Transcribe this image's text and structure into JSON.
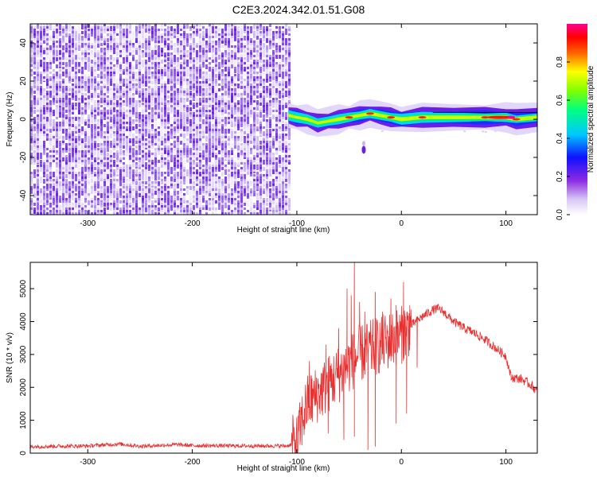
{
  "title": "C2E3.2024.342.01.51.G08",
  "colors": {
    "snr_line": "#e83030",
    "axis": "#000000"
  },
  "chart_data": [
    {
      "type": "heatmap",
      "xlabel": "Height of straight line (km)",
      "ylabel": "Frequency (Hz)",
      "xlim": [
        -355,
        130
      ],
      "ylim": [
        -50,
        50
      ],
      "x_ticks": [
        -300,
        -200,
        -100,
        0,
        100
      ],
      "y_ticks": [
        -40,
        -20,
        0,
        20,
        40
      ],
      "x_tick_labels": [
        "-300",
        "-200",
        "-100",
        "0",
        "100"
      ],
      "y_tick_labels": [
        "-40",
        "-20",
        "0",
        "20",
        "40"
      ],
      "colorbar": {
        "label": "Normalized spectral amplitude",
        "range": [
          0.0,
          1.0
        ],
        "ticks": [
          0.0,
          0.2,
          0.4,
          0.6,
          0.8
        ],
        "tick_labels": [
          "0.0",
          "0.2",
          "0.4",
          "0.6",
          "0.8"
        ],
        "colormap": "rainbow (white-purple-blue-cyan-green-yellow-red-magenta)"
      },
      "features": {
        "noise_region_x": [
          -355,
          -108
        ],
        "signal_onset_x": -108,
        "signal_track": [
          [
            -108,
            2
          ],
          [
            -100,
            1
          ],
          [
            -90,
            0
          ],
          [
            -80,
            -2
          ],
          [
            -70,
            -1
          ],
          [
            -60,
            0
          ],
          [
            -50,
            1
          ],
          [
            -40,
            2
          ],
          [
            -30,
            3
          ],
          [
            -20,
            2
          ],
          [
            -10,
            1
          ],
          [
            0,
            0
          ],
          [
            20,
            1
          ],
          [
            50,
            1
          ],
          [
            80,
            1
          ],
          [
            100,
            1
          ],
          [
            110,
            0
          ],
          [
            130,
            1
          ]
        ],
        "secondary_blob": [
          [
            -36,
            -16
          ]
        ]
      }
    },
    {
      "type": "line",
      "xlabel": "Height of straight line (km)",
      "ylabel": "SNR (10 * v/v)",
      "xlim": [
        -355,
        130
      ],
      "ylim": [
        0,
        5800
      ],
      "x_ticks": [
        -300,
        -200,
        -100,
        0,
        100
      ],
      "y_ticks": [
        0,
        1000,
        2000,
        3000,
        4000,
        5000
      ],
      "x_tick_labels": [
        "-300",
        "-200",
        "-100",
        "0",
        "100"
      ],
      "y_tick_labels": [
        "0",
        "1000",
        "2000",
        "3000",
        "4000",
        "5000"
      ],
      "series": [
        {
          "points": [
            [
              -355,
              200
            ],
            [
              -330,
              210
            ],
            [
              -300,
              220
            ],
            [
              -270,
              280
            ],
            [
              -250,
              210
            ],
            [
              -215,
              260
            ],
            [
              -200,
              230
            ],
            [
              -150,
              220
            ],
            [
              -110,
              220
            ],
            [
              -100,
              300
            ],
            [
              -95,
              1000
            ],
            [
              -90,
              1500
            ],
            [
              -80,
              1800
            ],
            [
              -70,
              2100
            ],
            [
              -60,
              2400
            ],
            [
              -50,
              2700
            ],
            [
              -40,
              3000
            ],
            [
              -30,
              3150
            ],
            [
              -20,
              3300
            ],
            [
              -10,
              3450
            ],
            [
              0,
              3600
            ],
            [
              10,
              3900
            ],
            [
              20,
              4150
            ],
            [
              30,
              4350
            ],
            [
              35,
              4400
            ],
            [
              40,
              4300
            ],
            [
              50,
              4000
            ],
            [
              60,
              3800
            ],
            [
              70,
              3650
            ],
            [
              80,
              3450
            ],
            [
              90,
              3200
            ],
            [
              100,
              2950
            ],
            [
              105,
              2300
            ],
            [
              115,
              2250
            ],
            [
              125,
              2050
            ],
            [
              130,
              1850
            ]
          ],
          "spikes": [
            [
              -88,
              2800
            ],
            [
              -72,
              3300
            ],
            [
              -60,
              3800
            ],
            [
              -52,
              5000
            ],
            [
              -48,
              4800
            ],
            [
              -45,
              5800
            ],
            [
              -40,
              4600
            ],
            [
              -35,
              4300
            ],
            [
              -25,
              4900
            ],
            [
              -18,
              4300
            ],
            [
              -10,
              4700
            ],
            [
              -5,
              4500
            ],
            [
              2,
              5200
            ],
            [
              8,
              4500
            ]
          ],
          "dips": [
            [
              -70,
              600
            ],
            [
              -55,
              400
            ],
            [
              -45,
              500
            ],
            [
              -32,
              100
            ],
            [
              -25,
              200
            ],
            [
              -5,
              900
            ],
            [
              5,
              1200
            ],
            [
              15,
              2600
            ]
          ]
        }
      ]
    }
  ]
}
